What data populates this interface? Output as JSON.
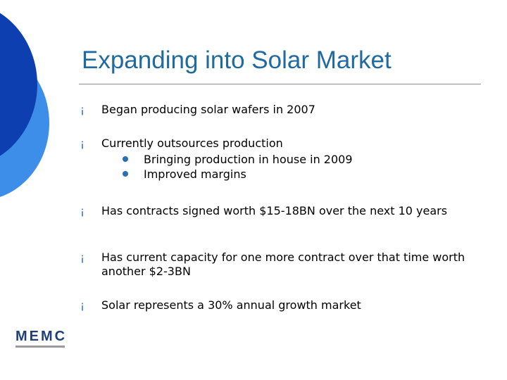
{
  "slide": {
    "title": "Expanding into Solar Market",
    "bullets": [
      {
        "text": "Began producing solar wafers in 2007"
      },
      {
        "text": "Currently outsources production",
        "sub": [
          {
            "text": "Bringing production in house in 2009"
          },
          {
            "text": "Improved margins"
          }
        ]
      },
      {
        "text": "Has contracts signed worth $15-18BN over the next 10 years"
      },
      {
        "text": "Has current capacity for one more contract over that time worth another $2-3BN"
      },
      {
        "text": "Solar represents a 30% annual growth market"
      }
    ],
    "bullet_marker": "¡",
    "logo_text": "MEMC"
  },
  "colors": {
    "title": "#1f6aa0",
    "bullet": "#2b6fb0",
    "deco_dark": "#0d3fb0",
    "deco_light": "#3d8ee8",
    "logo": "#1f3f7a"
  }
}
